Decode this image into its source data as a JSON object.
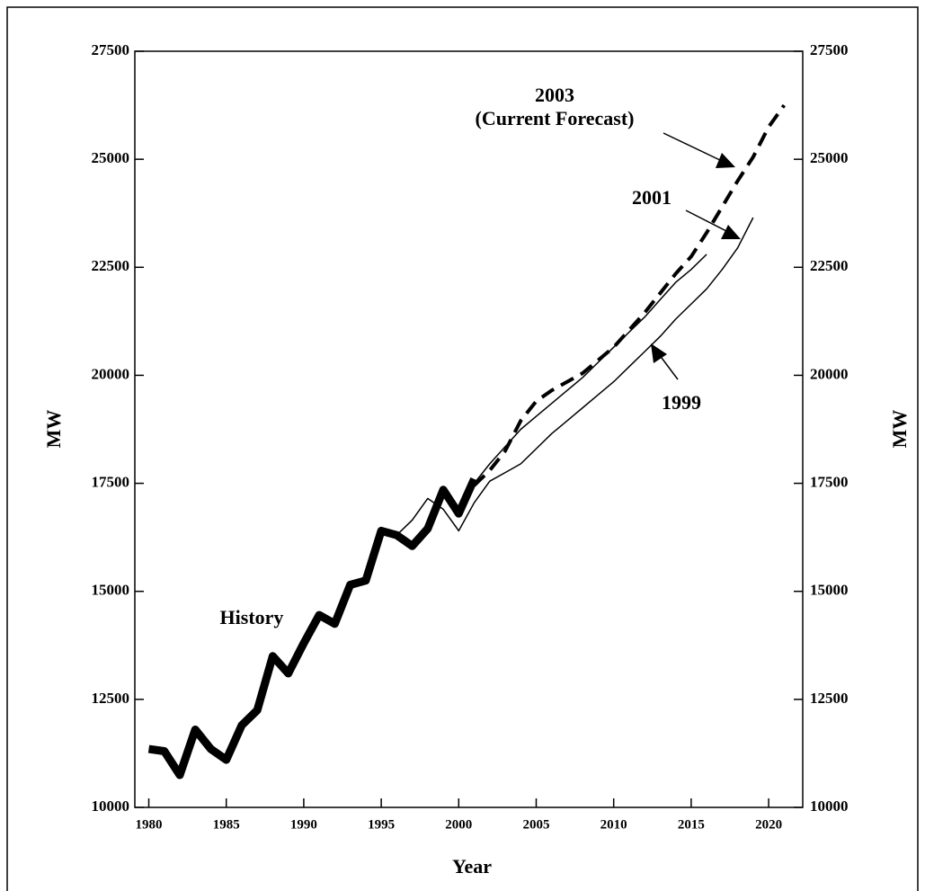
{
  "chart_data": {
    "type": "line",
    "xlabel": "Year",
    "ylabel": "MW",
    "y2label": "MW",
    "xlim": [
      1979.1,
      2022.2
    ],
    "ylim": [
      10000,
      27500
    ],
    "y2lim": [
      10000,
      27500
    ],
    "xticks": [
      1980,
      1985,
      1990,
      1995,
      2000,
      2005,
      2010,
      2015,
      2020
    ],
    "yticks": [
      10000,
      12500,
      15000,
      17500,
      20000,
      22500,
      25000,
      27500
    ],
    "y2ticks": [
      10000,
      12500,
      15000,
      17500,
      20000,
      22500,
      25000,
      27500
    ],
    "series": [
      {
        "name": "1999",
        "color": "#000000",
        "x": [
          1996,
          1997,
          1998,
          1999,
          2000,
          2001,
          2002,
          2003,
          2004,
          2005,
          2006,
          2007,
          2008,
          2009,
          2010,
          2011,
          2012,
          2013,
          2014,
          2015,
          2016,
          2017,
          2018,
          2019
        ],
        "values": [
          16300,
          16650,
          17150,
          16900,
          16400,
          17050,
          17550,
          17750,
          17950,
          18300,
          18650,
          18950,
          19250,
          19550,
          19850,
          20200,
          20550,
          20900,
          21300,
          21650,
          22000,
          22450,
          22950,
          23650
        ]
      },
      {
        "name": "2001",
        "color": "#000000",
        "x": [
          1998,
          1999,
          2000,
          2001,
          2002,
          2003,
          2004,
          2005,
          2006,
          2007,
          2008,
          2009,
          2010,
          2011,
          2012,
          2013,
          2014,
          2015,
          2016
        ],
        "values": [
          16450,
          17350,
          16850,
          17500,
          17950,
          18350,
          18750,
          19050,
          19350,
          19650,
          19950,
          20300,
          20650,
          21000,
          21350,
          21750,
          22150,
          22450,
          22800
        ]
      },
      {
        "name": "2003",
        "annotation": "(Current Forecast)",
        "color": "#000000",
        "x": [
          2001,
          2002,
          2003,
          2004,
          2005,
          2006,
          2007,
          2008,
          2009,
          2010,
          2011,
          2012,
          2013,
          2014,
          2015,
          2016,
          2017,
          2018,
          2019,
          2020,
          2021
        ],
        "values": [
          17450,
          17800,
          18250,
          18950,
          19400,
          19650,
          19850,
          20050,
          20350,
          20650,
          21050,
          21450,
          21900,
          22350,
          22750,
          23300,
          23900,
          24500,
          25050,
          25750,
          26250
        ]
      },
      {
        "name": "History",
        "color": "#000000",
        "x": [
          1980,
          1981,
          1982,
          1983,
          1984,
          1985,
          1986,
          1987,
          1988,
          1989,
          1990,
          1991,
          1992,
          1993,
          1994,
          1995,
          1996,
          1997,
          1998,
          1999,
          2000,
          2001
        ],
        "values": [
          11350,
          11300,
          10750,
          11800,
          11350,
          11100,
          11900,
          12250,
          13500,
          13100,
          13800,
          14450,
          14250,
          15150,
          15250,
          16400,
          16300,
          16050,
          16450,
          17350,
          16800,
          17600
        ]
      }
    ]
  }
}
